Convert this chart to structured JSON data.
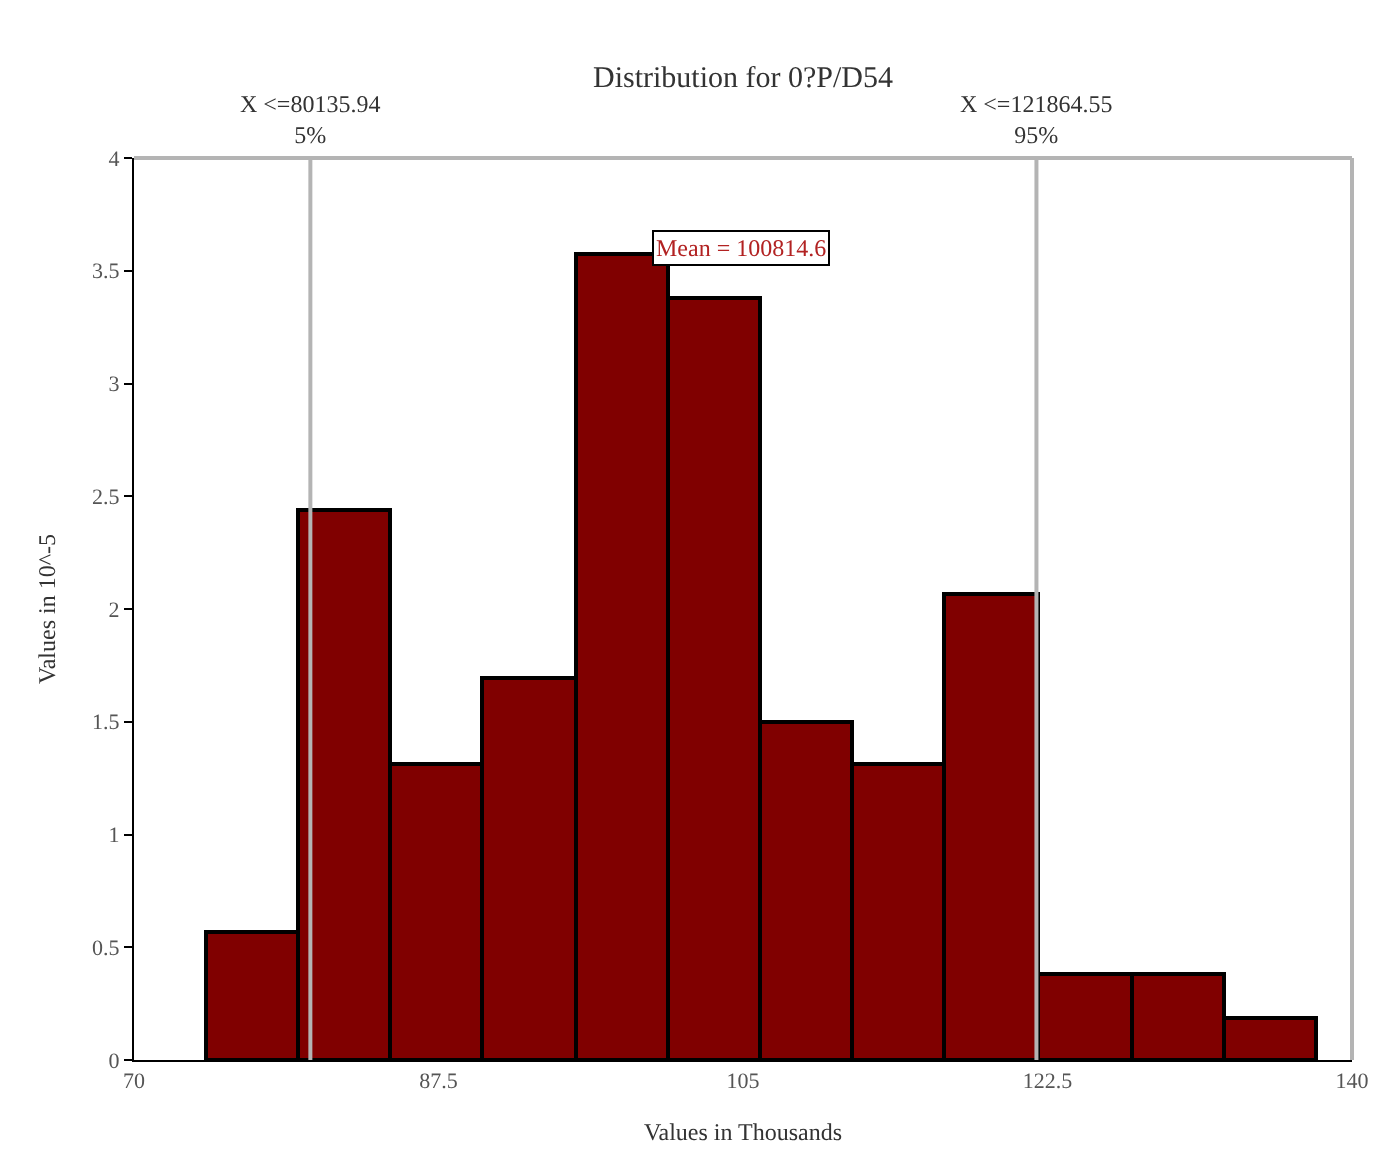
{
  "chart_data": {
    "type": "histogram",
    "title": "Distribution for 0?P/D54",
    "xlabel": "Values in Thousands",
    "ylabel": "Values in 10^-5",
    "bins": [
      74.1,
      79.4,
      84.7,
      90.0,
      95.4,
      100.7,
      106.0,
      111.3,
      116.6,
      121.9,
      127.3,
      132.6,
      137.9
    ],
    "values": [
      0.57,
      2.44,
      1.31,
      1.69,
      3.57,
      3.38,
      1.5,
      1.31,
      2.07,
      0.38,
      0.38,
      0.19
    ],
    "color": "#800000",
    "xlim": [
      70,
      140
    ],
    "xticks": [
      70,
      87.5,
      105,
      122.5,
      140
    ],
    "ylim": [
      0,
      4
    ],
    "yticks": [
      0,
      0.5,
      1,
      1.5,
      2,
      2.5,
      3,
      3.5,
      4
    ],
    "ref_lines": [
      {
        "axis": "x",
        "value": 80.13594,
        "label": "X <=80135.94\n5%",
        "color": "#b4b4b4"
      },
      {
        "axis": "x",
        "value": 121.86455,
        "label": "X <=121864.55\n95%",
        "color": "#b4b4b4"
      }
    ],
    "annotations": [
      "Mean = 100814.6"
    ]
  }
}
